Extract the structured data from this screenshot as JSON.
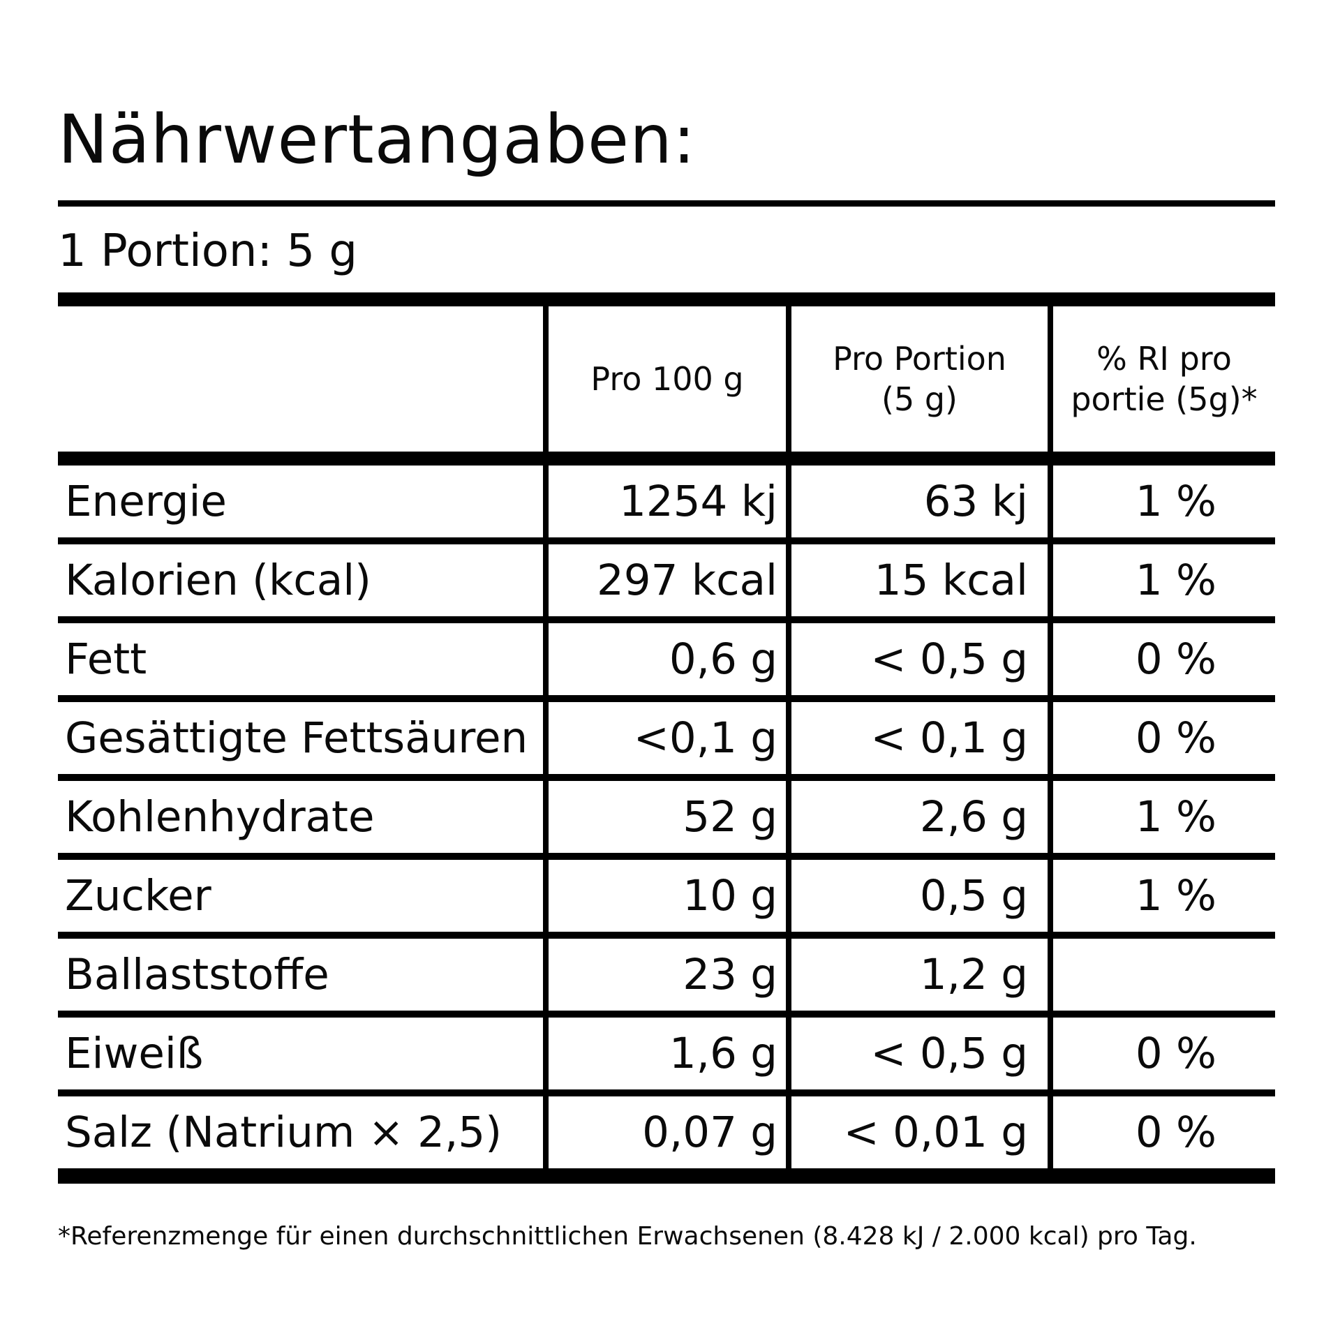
{
  "page": {
    "title": "Nährwertangaben:",
    "portion": "1 Portion: 5 g",
    "footnote": "*Referenzmenge für einen durchschnittlichen Erwachsenen (8.428 kJ / 2.000 kcal) pro Tag."
  },
  "table": {
    "header": {
      "col2_lines": [
        "Pro 100 g"
      ],
      "col3_lines": [
        "Pro Portion",
        "(5 g)"
      ],
      "col4_lines": [
        "% RI pro",
        "portie (5g)*"
      ]
    },
    "rows": [
      {
        "name": "Energie",
        "per_100g": "1254 kj",
        "per_portion": "63 kj",
        "ri_percent": "1 %"
      },
      {
        "name": "Kalorien (kcal)",
        "per_100g": "297 kcal",
        "per_portion": "15 kcal",
        "ri_percent": "1 %"
      },
      {
        "name": "Fett",
        "per_100g": "0,6 g",
        "per_portion": "< 0,5 g",
        "ri_percent": "0 %"
      },
      {
        "name": "Gesättigte Fettsäuren",
        "per_100g": "<0,1 g",
        "per_portion": "< 0,1 g",
        "ri_percent": "0 %"
      },
      {
        "name": "Kohlenhydrate",
        "per_100g": "52 g",
        "per_portion": "2,6 g",
        "ri_percent": "1 %"
      },
      {
        "name": "Zucker",
        "per_100g": "10 g",
        "per_portion": "0,5 g",
        "ri_percent": "1 %"
      },
      {
        "name": "Ballaststoffe",
        "per_100g": "23 g",
        "per_portion": "1,2 g",
        "ri_percent": ""
      },
      {
        "name": "Eiweiß",
        "per_100g": "1,6 g",
        "per_portion": "< 0,5 g",
        "ri_percent": "0 %"
      },
      {
        "name": "Salz (Natrium × 2,5)",
        "per_100g": "0,07 g",
        "per_portion": "< 0,01 g",
        "ri_percent": "0 %"
      }
    ]
  },
  "colors": {
    "text": "#0a0a0a",
    "background": "#ffffff",
    "rule": "#000000"
  }
}
